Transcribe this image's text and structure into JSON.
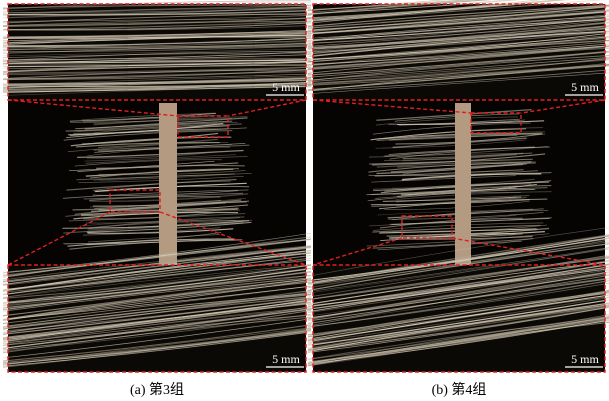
{
  "panels": [
    {
      "top_scale": "5 mm",
      "bottom_scale": "5 mm",
      "caption": "(a) 第3组"
    },
    {
      "top_scale": "5 mm",
      "bottom_scale": "5 mm",
      "caption": "(b) 第4组"
    }
  ]
}
